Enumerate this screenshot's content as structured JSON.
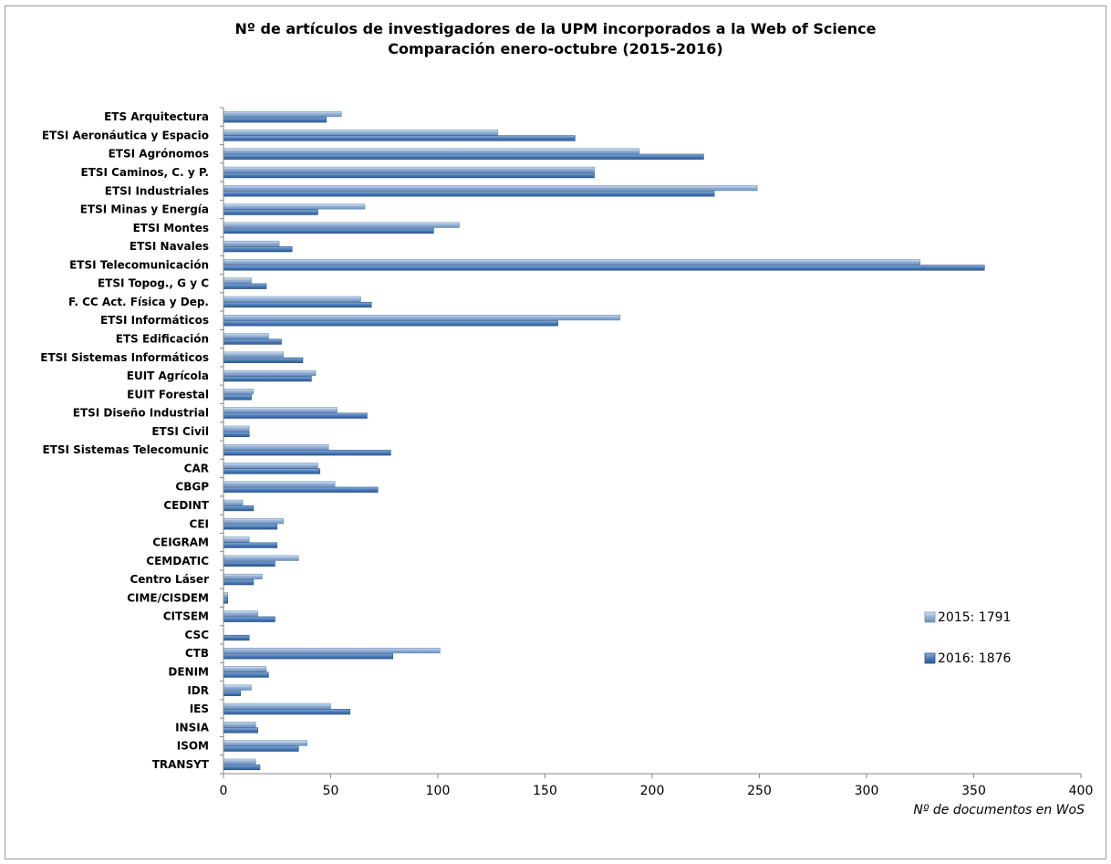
{
  "chart_data": {
    "type": "bar",
    "orientation": "horizontal",
    "title": "Nº de artículos de investigadores de la UPM incorporados a la Web of Science",
    "subtitle": "Comparación enero-octubre (2015-2016)",
    "xlabel": "Nº de documentos en WoS",
    "ylabel": "",
    "xlim": [
      0,
      400
    ],
    "xticks": [
      0,
      50,
      100,
      150,
      200,
      250,
      300,
      350,
      400
    ],
    "grid": false,
    "legend_position": "right",
    "categories": [
      "ETS Arquitectura",
      "ETSI Aeronáutica y Espacio",
      "ETSI Agrónomos",
      "ETSI Caminos, C. y P.",
      "ETSI Industriales",
      "ETSI Minas y Energía",
      "ETSI Montes",
      "ETSI Navales",
      "ETSI Telecomunicación",
      "ETSI Topog., G y C",
      "F. CC Act. Física y Dep.",
      "ETSI Informáticos",
      "ETS Edificación",
      "ETSI Sistemas Informáticos",
      "EUIT Agrícola",
      "EUIT Forestal",
      "ETSI Diseño Industrial",
      "ETSI Civil",
      "ETSI Sistemas Telecomunic",
      "CAR",
      "CBGP",
      "CEDINT",
      "CEI",
      "CEIGRAM",
      "CEMDATIC",
      "Centro Láser",
      "CIME/CISDEM",
      "CITSEM",
      "CSC",
      "CTB",
      "DENIM",
      "IDR",
      "IES",
      "INSIA",
      "ISOM",
      "TRANSYT"
    ],
    "series": [
      {
        "name": "2015: 1791",
        "color": "#95B3D7",
        "values": [
          55,
          128,
          194,
          173,
          249,
          66,
          110,
          26,
          325,
          13,
          64,
          185,
          21,
          28,
          43,
          14,
          53,
          12,
          49,
          44,
          52,
          9,
          28,
          12,
          35,
          18,
          2,
          16,
          0,
          101,
          20,
          13,
          50,
          15,
          39,
          15
        ]
      },
      {
        "name": "2016: 1876",
        "color": "#4F81BD",
        "values": [
          48,
          164,
          224,
          173,
          229,
          44,
          98,
          32,
          355,
          20,
          69,
          156,
          27,
          37,
          41,
          13,
          67,
          12,
          78,
          45,
          72,
          14,
          25,
          25,
          24,
          14,
          2,
          24,
          12,
          79,
          21,
          8,
          59,
          16,
          35,
          17
        ]
      }
    ]
  }
}
